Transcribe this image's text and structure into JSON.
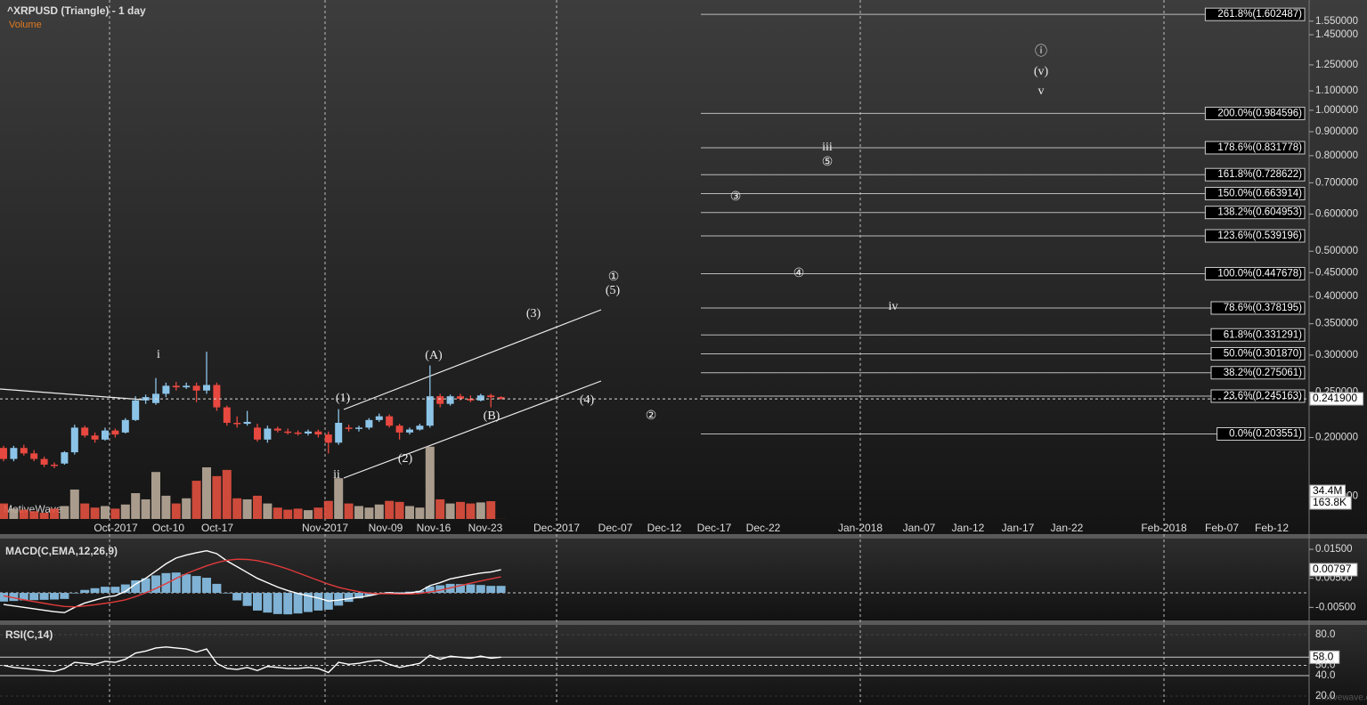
{
  "chart_data": [
    {
      "type": "candlestick",
      "title": "^XRPUSD (Triangle) - 1 day",
      "subtitle": "Volume",
      "watermark": "MotiveWave",
      "footer": "motivewave.com",
      "log_scale": true,
      "ylim": [
        0.134,
        1.72
      ],
      "yticks": [
        {
          "value": 1.55,
          "label": "1.550000"
        },
        {
          "value": 1.45,
          "label": "1.450000"
        },
        {
          "value": 1.25,
          "label": "1.250000"
        },
        {
          "value": 1.1,
          "label": "1.100000"
        },
        {
          "value": 1.0,
          "label": "1.000000"
        },
        {
          "value": 0.9,
          "label": "0.900000"
        },
        {
          "value": 0.8,
          "label": "0.800000"
        },
        {
          "value": 0.7,
          "label": "0.700000"
        },
        {
          "value": 0.6,
          "label": "0.600000"
        },
        {
          "value": 0.5,
          "label": "0.500000"
        },
        {
          "value": 0.45,
          "label": "0.450000"
        },
        {
          "value": 0.4,
          "label": "0.400000"
        },
        {
          "value": 0.35,
          "label": "0.350000"
        },
        {
          "value": 0.3,
          "label": "0.300000"
        },
        {
          "value": 0.25,
          "label": "0.250000"
        },
        {
          "value": 0.2,
          "label": "0.200000"
        },
        {
          "value": 0.15,
          "label": "0.150000"
        }
      ],
      "x_labels": [
        "Oct-2017",
        "Oct-10",
        "Oct-17",
        "Nov-2017",
        "Nov-09",
        "Nov-16",
        "Nov-23",
        "Dec-2017",
        "Dec-07",
        "Dec-12",
        "Dec-17",
        "Dec-22",
        "Jan-2018",
        "Jan-07",
        "Jan-12",
        "Jan-17",
        "Jan-22",
        "Feb-2018",
        "Feb-07",
        "Feb-12"
      ],
      "up_color": "#8cc4e8",
      "down_color": "#e8483f",
      "open": [
        0.19,
        0.18,
        0.19,
        0.185,
        0.18,
        0.175,
        0.176,
        0.186,
        0.21,
        0.202,
        0.198,
        0.207,
        0.205,
        0.218,
        0.24,
        0.237,
        0.248,
        0.258,
        0.256,
        0.258,
        0.252,
        0.259,
        0.232,
        0.215,
        0.214,
        0.21,
        0.198,
        0.209,
        0.206,
        0.205,
        0.204,
        0.206,
        0.203,
        0.195,
        0.21,
        0.209,
        0.21,
        0.218,
        0.222,
        0.212,
        0.205,
        0.208,
        0.212,
        0.245,
        0.236,
        0.245,
        0.242,
        0.24,
        0.246,
        0.244
      ],
      "high": [
        0.192,
        0.192,
        0.193,
        0.188,
        0.182,
        0.177,
        0.187,
        0.213,
        0.212,
        0.205,
        0.21,
        0.209,
        0.22,
        0.245,
        0.247,
        0.268,
        0.262,
        0.263,
        0.262,
        0.262,
        0.305,
        0.262,
        0.234,
        0.222,
        0.228,
        0.214,
        0.212,
        0.211,
        0.209,
        0.207,
        0.208,
        0.208,
        0.206,
        0.23,
        0.213,
        0.212,
        0.22,
        0.225,
        0.224,
        0.214,
        0.21,
        0.214,
        0.285,
        0.248,
        0.247,
        0.248,
        0.246,
        0.248,
        0.248,
        0.245
      ],
      "low": [
        0.178,
        0.178,
        0.183,
        0.178,
        0.173,
        0.172,
        0.175,
        0.184,
        0.2,
        0.195,
        0.197,
        0.2,
        0.204,
        0.217,
        0.236,
        0.235,
        0.244,
        0.252,
        0.254,
        0.238,
        0.248,
        0.228,
        0.212,
        0.21,
        0.212,
        0.196,
        0.195,
        0.205,
        0.203,
        0.202,
        0.202,
        0.2,
        0.185,
        0.193,
        0.206,
        0.206,
        0.208,
        0.216,
        0.21,
        0.198,
        0.203,
        0.207,
        0.21,
        0.232,
        0.234,
        0.24,
        0.238,
        0.239,
        0.232,
        0.241
      ],
      "close": [
        0.18,
        0.19,
        0.185,
        0.18,
        0.175,
        0.174,
        0.186,
        0.21,
        0.202,
        0.198,
        0.207,
        0.203,
        0.218,
        0.24,
        0.244,
        0.248,
        0.258,
        0.256,
        0.258,
        0.252,
        0.259,
        0.232,
        0.215,
        0.214,
        0.216,
        0.198,
        0.209,
        0.207,
        0.205,
        0.204,
        0.206,
        0.203,
        0.195,
        0.215,
        0.209,
        0.21,
        0.218,
        0.222,
        0.212,
        0.205,
        0.208,
        0.212,
        0.245,
        0.236,
        0.245,
        0.242,
        0.24,
        0.246,
        0.244,
        0.2419
      ],
      "last_price": {
        "value": 0.2419,
        "label": "0.241900"
      },
      "fib_levels": [
        {
          "value": 1.602487,
          "label": "261.8%(1.602487)"
        },
        {
          "value": 0.984596,
          "label": "200.0%(0.984596)"
        },
        {
          "value": 0.831778,
          "label": "178.6%(0.831778)"
        },
        {
          "value": 0.728622,
          "label": "161.8%(0.728622)"
        },
        {
          "value": 0.663914,
          "label": "150.0%(0.663914)"
        },
        {
          "value": 0.604953,
          "label": "138.2%(0.604953)"
        },
        {
          "value": 0.539196,
          "label": "123.6%(0.539196)"
        },
        {
          "value": 0.447678,
          "label": "100.0%(0.447678)"
        },
        {
          "value": 0.378195,
          "label": "78.6%(0.378195)"
        },
        {
          "value": 0.331291,
          "label": "61.8%(0.331291)"
        },
        {
          "value": 0.30187,
          "label": "50.0%(0.301870)"
        },
        {
          "value": 0.275061,
          "label": "38.2%(0.275061)"
        },
        {
          "value": 0.245163,
          "label": "23.6%(0.245163)"
        },
        {
          "value": 0.203551,
          "label": "0.0%(0.203551)"
        }
      ],
      "annotations": [
        "i",
        "ii",
        "(1)",
        "(2)",
        "(A)",
        "(B)",
        "(3)",
        "(4)",
        "(5)",
        "①",
        "②",
        "③",
        "④",
        "iii",
        "⑤",
        "iv",
        "ⓘ",
        "(v)",
        "v"
      ],
      "volume": {
        "ylim": [
          0,
          150
        ],
        "values": [
          30,
          20,
          18,
          15,
          12,
          20,
          25,
          57,
          30,
          22,
          25,
          20,
          28,
          50,
          38,
          91,
          45,
          30,
          40,
          74,
          100,
          83,
          95,
          40,
          38,
          45,
          30,
          22,
          18,
          20,
          17,
          22,
          35,
          79,
          30,
          25,
          22,
          28,
          35,
          33,
          25,
          22,
          140,
          38,
          30,
          33,
          30,
          32,
          34.4,
          0.1638
        ],
        "labels": [
          {
            "value": 34.4,
            "label": "34.4M"
          },
          {
            "value": 0.1638,
            "label": "163.8K"
          }
        ]
      }
    },
    {
      "type": "macd",
      "title": "MACD(C,EMA,12,26,9)",
      "ylim": [
        -0.0095,
        0.0187
      ],
      "yticks": [
        {
          "value": 0.015,
          "label": "0.01500"
        },
        {
          "value": 0.005,
          "label": "0.00500"
        },
        {
          "value": -0.005,
          "label": "-0.00500"
        }
      ],
      "last_label": {
        "value": 0.00797,
        "label": "0.00797"
      },
      "histogram": {
        "color": "#7fb2d4",
        "values": [
          -0.003,
          -0.0028,
          -0.0026,
          -0.0025,
          -0.0024,
          -0.0023,
          -0.0021,
          -0.0002,
          0.001,
          0.0016,
          0.0021,
          0.0021,
          0.0029,
          0.0043,
          0.005,
          0.006,
          0.0068,
          0.007,
          0.0064,
          0.0058,
          0.0052,
          0.0031,
          -0.0002,
          -0.0026,
          -0.0045,
          -0.0061,
          -0.0068,
          -0.0073,
          -0.0074,
          -0.0071,
          -0.0066,
          -0.0061,
          -0.0058,
          -0.0044,
          -0.0031,
          -0.0019,
          -0.0009,
          0.0,
          0.0003,
          0.0002,
          0.0004,
          0.0007,
          0.0022,
          0.0026,
          0.0031,
          0.003,
          0.0029,
          0.0027,
          0.0024,
          0.0024
        ]
      },
      "series": [
        {
          "color": "#ffffff",
          "values": [
            -0.004,
            -0.0045,
            -0.005,
            -0.0055,
            -0.006,
            -0.0065,
            -0.0068,
            -0.005,
            -0.0035,
            -0.0025,
            -0.0015,
            -0.001,
            0.0005,
            0.003,
            0.005,
            0.0075,
            0.01,
            0.012,
            0.013,
            0.0138,
            0.0145,
            0.0135,
            0.011,
            0.009,
            0.007,
            0.005,
            0.0035,
            0.002,
            0.0008,
            -0.0002,
            -0.001,
            -0.0018,
            -0.0028,
            -0.0025,
            -0.002,
            -0.0015,
            -0.001,
            -0.0003,
            0.0,
            -0.0002,
            0.0,
            0.0005,
            0.0025,
            0.0035,
            0.0048,
            0.0055,
            0.0062,
            0.0068,
            0.0072,
            0.00797
          ]
        },
        {
          "color": "#e03a3a",
          "values": [
            -0.001,
            -0.0017,
            -0.0024,
            -0.003,
            -0.0036,
            -0.0042,
            -0.0047,
            -0.0048,
            -0.0045,
            -0.0041,
            -0.0036,
            -0.0031,
            -0.0024,
            -0.0013,
            0.0,
            0.0015,
            0.0032,
            0.005,
            0.0066,
            0.008,
            0.0093,
            0.0104,
            0.0112,
            0.0116,
            0.0115,
            0.0111,
            0.0103,
            0.0093,
            0.0082,
            0.0069,
            0.0056,
            0.0043,
            0.003,
            0.0019,
            0.0011,
            0.0004,
            -0.0001,
            -0.0003,
            -0.0003,
            -0.0004,
            -0.0004,
            -0.0002,
            0.0003,
            0.0009,
            0.0017,
            0.0025,
            0.0033,
            0.0041,
            0.0048,
            0.0055
          ]
        }
      ]
    },
    {
      "type": "line",
      "title": "RSI(C,14)",
      "ylim": [
        11.3,
        88.7
      ],
      "color": "#ffffff",
      "yticks": [
        {
          "value": 80,
          "label": "80.0"
        },
        {
          "value": 58,
          "label": "58.0"
        },
        {
          "value": 50,
          "label": "50.0"
        },
        {
          "value": 40,
          "label": "40.0"
        },
        {
          "value": 20,
          "label": "20.0"
        }
      ],
      "values": [
        50,
        48,
        47,
        46,
        45,
        44,
        47,
        53,
        52,
        51,
        54,
        53,
        56,
        62,
        64,
        67,
        68,
        67,
        66,
        63,
        66,
        52,
        47,
        46,
        48,
        45,
        49,
        48,
        47,
        47,
        48,
        47,
        43,
        53,
        51,
        52,
        54,
        55,
        51,
        48,
        50,
        52,
        60,
        56,
        59,
        58,
        57,
        59,
        57,
        58
      ]
    }
  ]
}
